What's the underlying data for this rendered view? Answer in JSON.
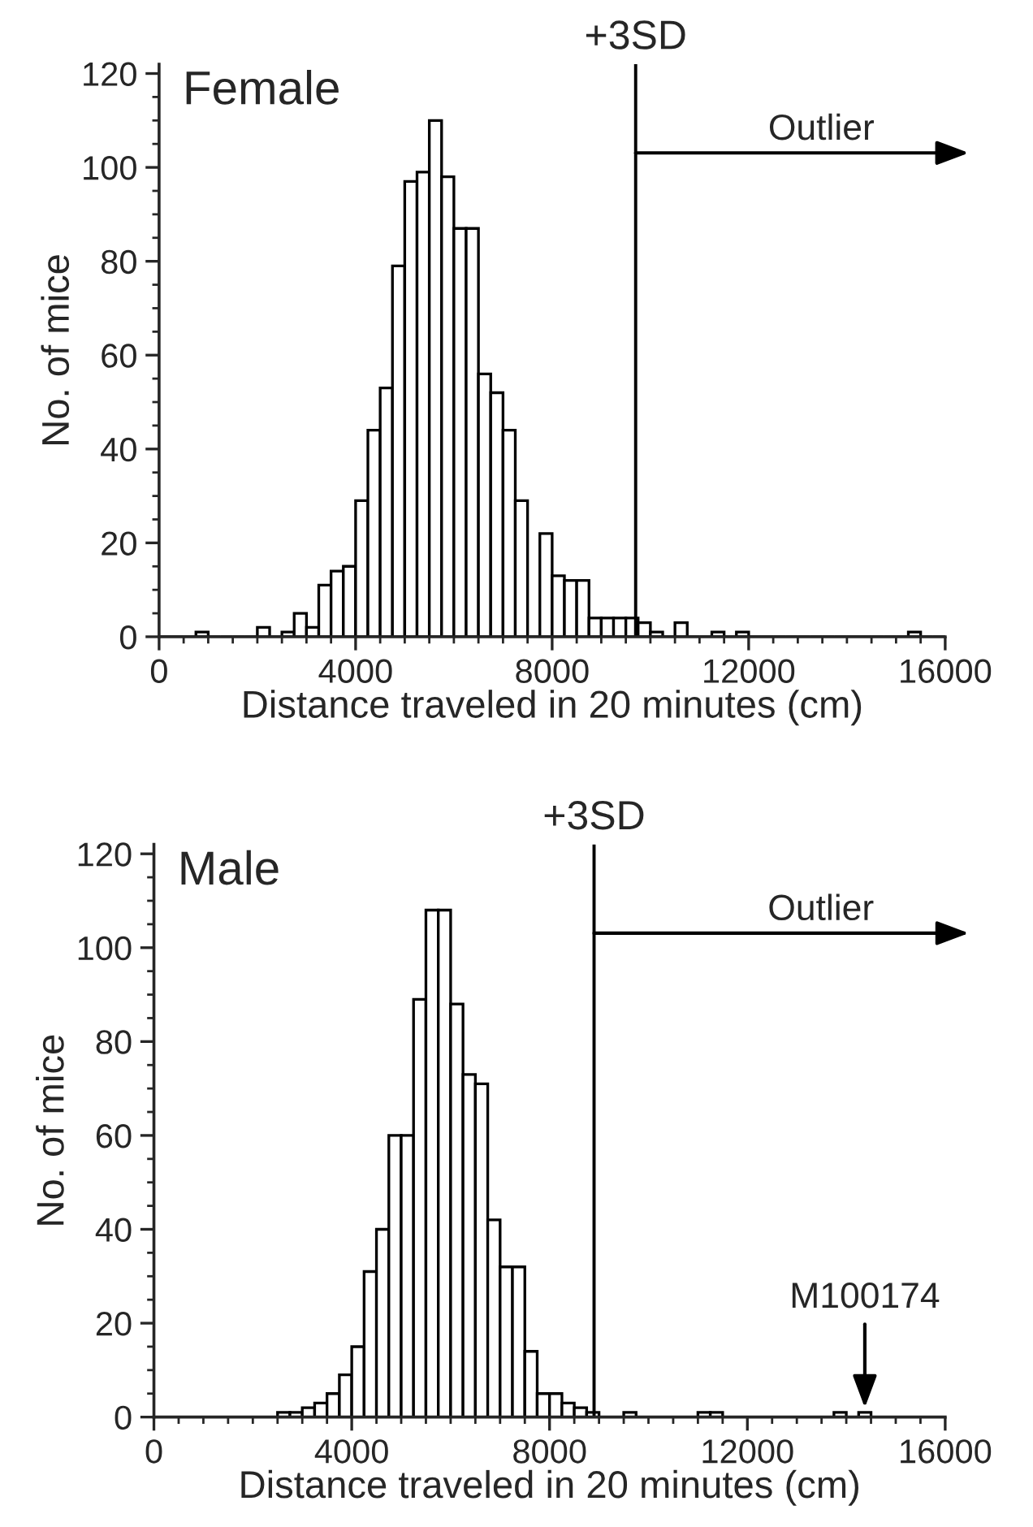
{
  "chart_data": [
    {
      "type": "histogram",
      "title": "Female",
      "xlabel": "Distance traveled in 20 minutes (cm)",
      "ylabel": "No. of mice",
      "bins": [
        0,
        250,
        500,
        750,
        1000,
        1250,
        1500,
        1750,
        2000,
        2250,
        2500,
        2750,
        3000,
        3250,
        3500,
        3750,
        4000,
        4250,
        4500,
        4750,
        5000,
        5250,
        5500,
        5750,
        6000,
        6250,
        6500,
        6750,
        7000,
        7250,
        7500,
        7750,
        8000,
        8250,
        8500,
        8750,
        9000,
        9250,
        9500,
        9750,
        10000,
        10250,
        10500,
        10750,
        11000,
        11250,
        11500,
        11750,
        12000,
        12250,
        12500,
        12750,
        13000,
        13250,
        13500,
        13750,
        14000,
        14250,
        14500,
        14750,
        15000,
        15250,
        15500,
        15750,
        16000
      ],
      "values": [
        0,
        0,
        0,
        1,
        0,
        0,
        0,
        0,
        2,
        0,
        1,
        5,
        2,
        11,
        14,
        15,
        29,
        44,
        53,
        79,
        97,
        99,
        110,
        98,
        87,
        87,
        56,
        52,
        44,
        29,
        0,
        22,
        13,
        12,
        12,
        4,
        4,
        4,
        4,
        3,
        1,
        0,
        3,
        0,
        0,
        1,
        0,
        1,
        0,
        0,
        0,
        0,
        0,
        0,
        0,
        0,
        0,
        0,
        0,
        0,
        0,
        1,
        0,
        0
      ],
      "xlim": [
        0,
        16000
      ],
      "xticks": [
        0,
        4000,
        8000,
        12000,
        16000
      ],
      "ylim": [
        0,
        122
      ],
      "yticks": [
        0,
        20,
        40,
        60,
        80,
        100,
        120
      ],
      "ref_lines": [
        {
          "axis": "x",
          "value": 9700,
          "label": "+3SD"
        }
      ],
      "annotations": [
        "Outlier"
      ],
      "grid": false,
      "legend": false
    },
    {
      "type": "histogram",
      "title": "Male",
      "xlabel": "Distance traveled in 20 minutes (cm)",
      "ylabel": "No. of mice",
      "bins": [
        0,
        250,
        500,
        750,
        1000,
        1250,
        1500,
        1750,
        2000,
        2250,
        2500,
        2750,
        3000,
        3250,
        3500,
        3750,
        4000,
        4250,
        4500,
        4750,
        5000,
        5250,
        5500,
        5750,
        6000,
        6250,
        6500,
        6750,
        7000,
        7250,
        7500,
        7750,
        8000,
        8250,
        8500,
        8750,
        9000,
        9250,
        9500,
        9750,
        10000,
        10250,
        10500,
        10750,
        11000,
        11250,
        11500,
        11750,
        12000,
        12250,
        12500,
        12750,
        13000,
        13250,
        13500,
        13750,
        14000,
        14250,
        14500,
        14750,
        15000,
        15250,
        15500,
        15750,
        16000
      ],
      "values": [
        0,
        0,
        0,
        0,
        0,
        0,
        0,
        0,
        0,
        0,
        1,
        1,
        2,
        3,
        5,
        9,
        15,
        31,
        40,
        60,
        60,
        89,
        108,
        108,
        88,
        73,
        71,
        42,
        32,
        32,
        14,
        5,
        5,
        3,
        2,
        1,
        0,
        0,
        1,
        0,
        0,
        0,
        0,
        0,
        1,
        1,
        0,
        0,
        0,
        0,
        0,
        0,
        0,
        0,
        0,
        1,
        0,
        1,
        0,
        0,
        0,
        0,
        0,
        0
      ],
      "xlim": [
        0,
        16000
      ],
      "xticks": [
        0,
        4000,
        8000,
        12000,
        16000
      ],
      "ylim": [
        0,
        122
      ],
      "yticks": [
        0,
        20,
        40,
        60,
        80,
        100,
        120
      ],
      "ref_lines": [
        {
          "axis": "x",
          "value": 8900,
          "label": "+3SD"
        }
      ],
      "annotations": [
        "Outlier",
        {
          "text": "M100174",
          "x": 14375,
          "y": 2
        }
      ],
      "grid": false,
      "legend": false
    }
  ]
}
